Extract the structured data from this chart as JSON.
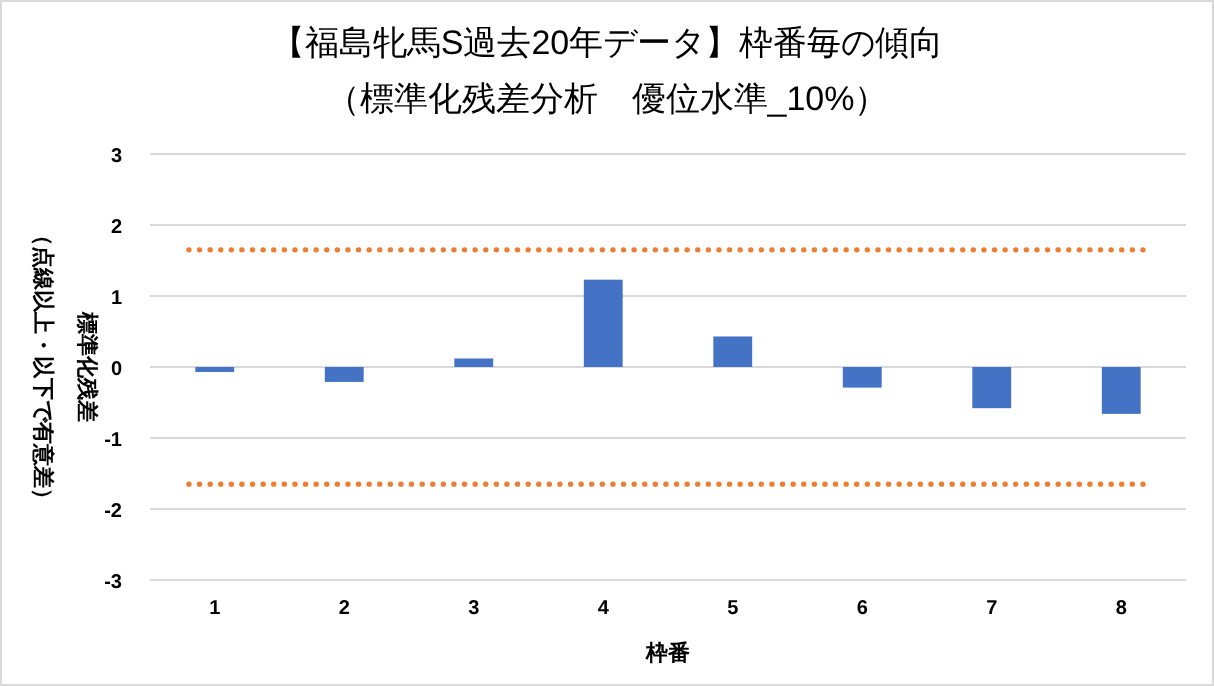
{
  "chart_data": {
    "type": "bar",
    "title": "【福島牝馬S過去20年データ】枠番毎の傾向",
    "subtitle": "（標準化残差分析　優位水準_10%）",
    "xlabel": "枠番",
    "ylabel": [
      "標準化残差",
      "（点線以上・以下で有意差）"
    ],
    "categories": [
      "1",
      "2",
      "3",
      "4",
      "5",
      "6",
      "7",
      "8"
    ],
    "values": [
      -0.07,
      -0.21,
      0.12,
      1.23,
      0.43,
      -0.29,
      -0.58,
      -0.66
    ],
    "color": "#4472c4",
    "ylim": [
      -3,
      3
    ],
    "yticks": [
      -3,
      -2,
      -1,
      0,
      1,
      2,
      3
    ],
    "grid": "y",
    "ref_lines": [
      {
        "axis": "y",
        "value": 1.65,
        "color": "#ed7d31",
        "line_style": "dotted"
      },
      {
        "axis": "y",
        "value": -1.65,
        "color": "#ed7d31",
        "line_style": "dotted"
      }
    ]
  }
}
